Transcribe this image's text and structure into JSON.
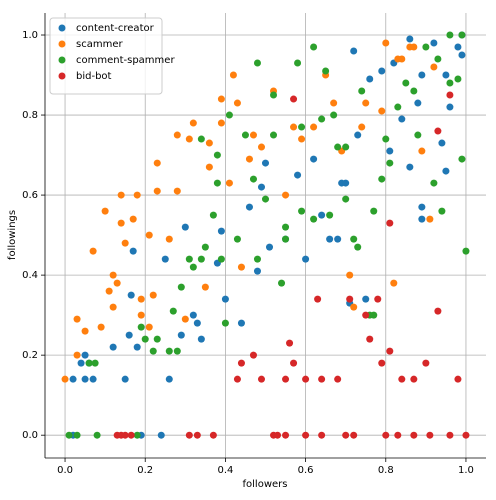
{
  "chart_data": {
    "type": "scatter",
    "x_label": "followers",
    "y_label": "followings",
    "xlim": [
      -0.05,
      1.05
    ],
    "ylim": [
      -0.057,
      1.055
    ],
    "xticks": [
      {
        "value": 0,
        "label": "0.0"
      },
      0.2,
      0.4,
      0.6,
      0.8,
      {
        "value": 1,
        "label": "1.0"
      }
    ],
    "yticks": [
      {
        "value": 0,
        "label": "0.0"
      },
      0.2,
      0.4,
      0.6,
      0.8,
      {
        "value": 1,
        "label": "1.0"
      }
    ],
    "grid": true,
    "legend": "upper left",
    "series": [
      {
        "name": "content-creator",
        "color": "#1f77b4",
        "x": [
          0.02,
          0.02,
          0.04,
          0.05,
          0.05,
          0.07,
          0.06,
          0.12,
          0.15,
          0.16,
          0.165,
          0.17,
          0.18,
          0.19,
          0.24,
          0.25,
          0.26,
          0.29,
          0.3,
          0.32,
          0.33,
          0.34,
          0.38,
          0.39,
          0.4,
          0.44,
          0.46,
          0.48,
          0.49,
          0.51,
          0.55,
          0.5,
          0.58,
          0.6,
          0.62,
          0.64,
          0.66,
          0.68,
          0.69,
          0.7,
          0.71,
          0.72,
          0.73,
          0.75,
          0.76,
          0.79,
          0.81,
          0.82,
          0.84,
          0.86,
          0.86,
          0.88,
          0.89,
          0.89,
          0.89,
          0.92,
          0.94,
          0.95,
          0.95,
          0.96,
          0.98,
          0.99,
          0.99
        ],
        "values": [
          0,
          0.14,
          0.18,
          0.2,
          0.14,
          0.14,
          0.18,
          0.22,
          0.14,
          0.25,
          0.35,
          0.46,
          0.22,
          0,
          0,
          0.44,
          0.14,
          0.25,
          0.52,
          0.3,
          0.28,
          0.24,
          0.43,
          0.51,
          0.34,
          0.28,
          0.57,
          0.41,
          0.62,
          0.47,
          0.49,
          0.68,
          0.65,
          0.44,
          0.69,
          0.55,
          0.49,
          0.49,
          0.63,
          0.63,
          0.33,
          0.96,
          0.75,
          0.34,
          0.89,
          0.91,
          0.71,
          0.93,
          0.79,
          0.67,
          0.99,
          0.83,
          0.54,
          0.57,
          0.9,
          0.98,
          0.73,
          0.9,
          0.66,
          0.82,
          0.97,
          0.95,
          1.0
        ]
      },
      {
        "name": "scammer",
        "color": "#ff7f0e",
        "x": [
          0.0,
          0.03,
          0.03,
          0.05,
          0.07,
          0.09,
          0.1,
          0.11,
          0.12,
          0.12,
          0.13,
          0.14,
          0.14,
          0.15,
          0.17,
          0.18,
          0.19,
          0.19,
          0.21,
          0.21,
          0.22,
          0.23,
          0.23,
          0.26,
          0.28,
          0.28,
          0.3,
          0.31,
          0.32,
          0.35,
          0.36,
          0.36,
          0.39,
          0.39,
          0.41,
          0.42,
          0.43,
          0.44,
          0.46,
          0.47,
          0.49,
          0.52,
          0.55,
          0.57,
          0.59,
          0.62,
          0.65,
          0.67,
          0.69,
          0.71,
          0.72,
          0.74,
          0.75,
          0.79,
          0.8,
          0.82,
          0.83,
          0.84,
          0.86,
          0.87,
          0.89,
          0.91,
          0.92
        ],
        "values": [
          0.14,
          0.29,
          0.2,
          0.26,
          0.46,
          0.27,
          0.56,
          0.36,
          0.4,
          0.32,
          0.38,
          0.53,
          0.6,
          0.48,
          0.54,
          0.6,
          0.34,
          0.3,
          0.27,
          0.5,
          0.35,
          0.61,
          0.68,
          0.49,
          0.75,
          0.61,
          0.29,
          0.74,
          0.78,
          0.37,
          0.67,
          0.73,
          0.84,
          0.78,
          0.63,
          0.9,
          0.83,
          0.42,
          0.69,
          0.75,
          0.72,
          0.86,
          0.6,
          0.77,
          0.74,
          0.77,
          0.9,
          0.83,
          0.71,
          0.4,
          0.32,
          0.77,
          0.83,
          0.81,
          0.98,
          0.38,
          0.94,
          0.94,
          0.97,
          0.97,
          0.71,
          0.54,
          0.92
        ]
      },
      {
        "name": "comment-spammer",
        "color": "#2ca02c",
        "x": [
          0.01,
          0.03,
          0.06,
          0.075,
          0.08,
          0.18,
          0.19,
          0.2,
          0.22,
          0.23,
          0.26,
          0.27,
          0.28,
          0.29,
          0.31,
          0.32,
          0.34,
          0.34,
          0.35,
          0.37,
          0.38,
          0.38,
          0.39,
          0.4,
          0.41,
          0.43,
          0.45,
          0.47,
          0.48,
          0.48,
          0.5,
          0.52,
          0.52,
          0.54,
          0.55,
          0.55,
          0.58,
          0.59,
          0.59,
          0.62,
          0.62,
          0.64,
          0.65,
          0.66,
          0.67,
          0.68,
          0.7,
          0.7,
          0.72,
          0.73,
          0.74,
          0.76,
          0.77,
          0.77,
          0.79,
          0.8,
          0.81,
          0.83,
          0.85,
          0.87,
          0.88,
          0.9,
          0.92,
          0.93,
          0.94,
          0.96,
          0.96,
          0.98,
          0.99,
          1.0,
          0.99
        ],
        "values": [
          0,
          0,
          0.18,
          0.18,
          0,
          0,
          0.27,
          0.24,
          0.21,
          0.24,
          0.21,
          0.31,
          0.21,
          0.37,
          0.44,
          0.42,
          0.44,
          0.74,
          0.47,
          0.55,
          0.7,
          0.63,
          0.44,
          0.28,
          0.8,
          0.49,
          0.75,
          0.64,
          0.44,
          0.93,
          0.59,
          0.75,
          0.85,
          0.38,
          0.49,
          0.52,
          0.93,
          0.56,
          0.77,
          0.97,
          0.54,
          0.79,
          0.91,
          0.55,
          0.8,
          0.72,
          0.59,
          0.72,
          0.49,
          0.47,
          0.86,
          0.3,
          0.3,
          0.56,
          0.64,
          0.74,
          0.68,
          0.82,
          0.88,
          0.86,
          0.75,
          0.97,
          0.63,
          0.94,
          0.56,
          0.88,
          1.0,
          0.89,
          0.69,
          0.46,
          1.0
        ]
      },
      {
        "name": "bid-bot",
        "color": "#d62728",
        "x": [
          0.13,
          0.14,
          0.15,
          0.165,
          0.31,
          0.33,
          0.37,
          0.52,
          0.53,
          0.55,
          0.6,
          0.64,
          0.7,
          0.72,
          0.8,
          0.83,
          0.87,
          0.91,
          0.96,
          1.0,
          0.43,
          0.44,
          0.47,
          0.49,
          0.55,
          0.56,
          0.57,
          0.57,
          0.6,
          0.63,
          0.64,
          0.68,
          0.71,
          0.75,
          0.76,
          0.78,
          0.79,
          0.81,
          0.81,
          0.84,
          0.87,
          0.9,
          0.93,
          0.93,
          0.96,
          0.98
        ],
        "values": [
          0,
          0,
          0,
          0,
          0,
          0,
          0,
          0,
          0,
          0,
          0,
          0,
          0,
          0,
          0,
          0,
          0,
          0,
          0,
          0,
          0.14,
          0.18,
          0.2,
          0.14,
          0.14,
          0.23,
          0.18,
          0.84,
          0.14,
          0.34,
          0.14,
          0.14,
          0.34,
          0.3,
          0.24,
          0.34,
          0.18,
          0.53,
          0.21,
          0.14,
          0.14,
          0.18,
          0.31,
          0.76,
          0.85,
          0.14
        ]
      }
    ]
  }
}
